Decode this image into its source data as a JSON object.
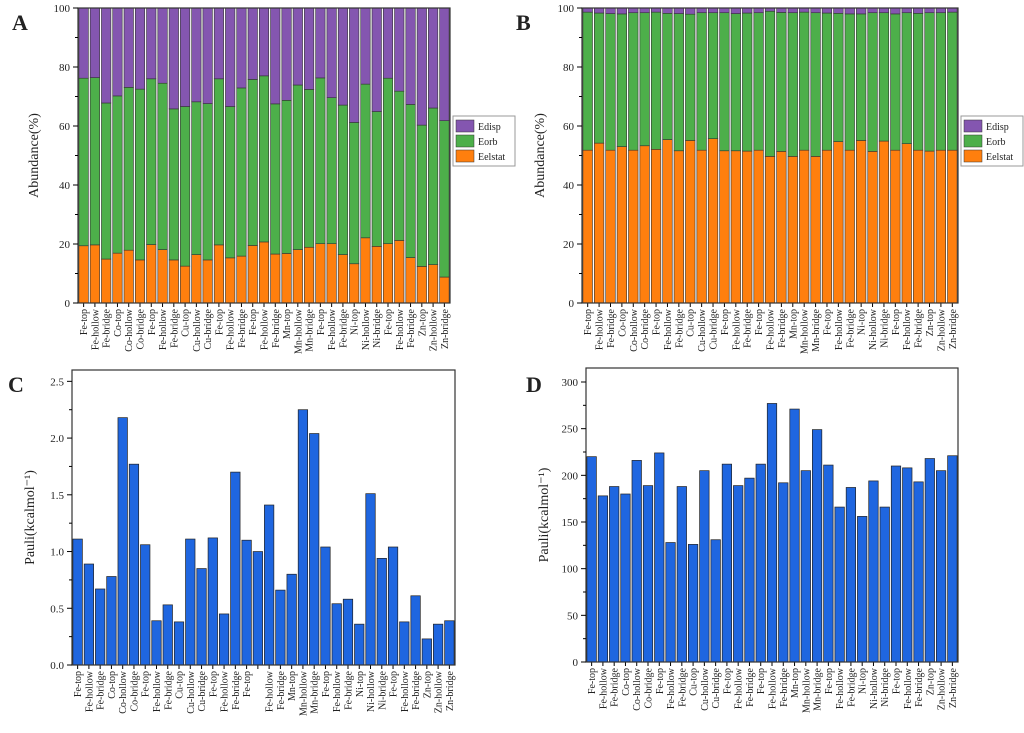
{
  "chart_data": [
    {
      "panel": "A",
      "type": "bar",
      "stacked": true,
      "ylabel": "Abundance(%)",
      "ylim": [
        0,
        100
      ],
      "yticks": [
        0,
        20,
        40,
        60,
        80,
        100
      ],
      "legend_position": "right",
      "categories": [
        "Fe-top",
        "Fe-hollow",
        "Fe-bridge",
        "Co-top",
        "Co-hollow",
        "Co-bridge",
        "Fe-top",
        "Fe-hollow",
        "Fe-bridge",
        "Cu-top",
        "Cu-hollow",
        "Cu-bridge",
        "Fe-top",
        "Fe-hollow",
        "Fe-bridge",
        "Fe-top",
        "Fe-hollow",
        "Fe-bridge",
        "Mn-top",
        "Mn-hollow",
        "Mn-bridge",
        "Fe-top",
        "Fe-hollow",
        "Fe-bridge",
        "Ni-top",
        "Ni-hollow",
        "Ni-bridge",
        "Fe-top",
        "Fe-hollow",
        "Fe-bridge",
        "Zn-top",
        "Zn-hollow",
        "Zn-bridge"
      ],
      "series": [
        {
          "name": "Eelstat",
          "color": "#ff7f0e",
          "values": [
            19.4,
            19.7,
            14.9,
            16.9,
            17.9,
            14.6,
            19.8,
            18.1,
            14.6,
            12.5,
            16.4,
            14.6,
            19.7,
            15.3,
            15.9,
            19.5,
            20.7,
            16.6,
            16.8,
            18.1,
            18.9,
            20.1,
            20.1,
            16.4,
            13.3,
            22.1,
            19.2,
            20.1,
            21.2,
            15.4,
            12.4,
            13.0,
            8.8
          ]
        },
        {
          "name": "Eorb",
          "color": "#4daf4a",
          "values": [
            56.8,
            56.7,
            52.9,
            53.3,
            55.2,
            57.9,
            56.2,
            56.4,
            51.2,
            54.1,
            51.8,
            53.0,
            56.3,
            51.3,
            57.0,
            56.3,
            56.3,
            50.9,
            51.9,
            55.8,
            53.5,
            56.2,
            49.5,
            50.7,
            47.9,
            52.1,
            45.7,
            56.1,
            50.6,
            51.9,
            47.9,
            53.1,
            53.0
          ]
        },
        {
          "name": "Edisp",
          "color": "#8456b0",
          "values": [
            23.8,
            23.6,
            32.2,
            29.8,
            26.9,
            27.5,
            24.0,
            25.5,
            34.2,
            33.4,
            31.8,
            32.4,
            24.0,
            33.4,
            27.1,
            24.2,
            23.0,
            32.5,
            31.3,
            26.1,
            27.6,
            23.7,
            30.4,
            32.9,
            38.8,
            25.8,
            35.1,
            23.8,
            28.2,
            32.7,
            39.7,
            33.9,
            38.2
          ]
        }
      ]
    },
    {
      "panel": "B",
      "type": "bar",
      "stacked": true,
      "ylabel": "Abundance(%)",
      "ylim": [
        0,
        100
      ],
      "yticks": [
        0,
        20,
        40,
        60,
        80,
        100
      ],
      "legend_position": "right",
      "categories": [
        "Fe-top",
        "Fe-hollow",
        "Fe-bridge",
        "Co-top",
        "Co-hollow",
        "Co-bridge",
        "Fe-top",
        "Fe-hollow",
        "Fe-bridge",
        "Cu-top",
        "Cu-hollow",
        "Cu-bridge",
        "Fe-top",
        "Fe-hollow",
        "Fe-bridge",
        "Fe-top",
        "Fe-hollow",
        "Fe-bridge",
        "Mn-top",
        "Mn-hollow",
        "Mn-bridge",
        "Fe-top",
        "Fe-hollow",
        "Fe-bridge",
        "Ni-top",
        "Ni-hollow",
        "Ni-bridge",
        "Fe-top",
        "Fe-hollow",
        "Fe-bridge",
        "Zn-top",
        "Zn-hollow",
        "Zn-bridge"
      ],
      "series": [
        {
          "name": "Eelstat",
          "color": "#ff7f0e",
          "values": [
            51.8,
            54.2,
            51.8,
            53.0,
            51.8,
            53.3,
            52.1,
            55.4,
            51.6,
            55.1,
            51.8,
            55.7,
            51.6,
            51.6,
            51.5,
            51.8,
            49.7,
            51.4,
            49.7,
            51.8,
            49.7,
            51.8,
            54.7,
            51.8,
            55.1,
            51.4,
            54.9,
            51.8,
            54.0,
            51.8,
            51.5,
            51.8,
            51.8
          ]
        },
        {
          "name": "Eorb",
          "color": "#4daf4a",
          "values": [
            46.8,
            44.1,
            46.3,
            45.0,
            46.6,
            45.1,
            46.5,
            42.8,
            46.5,
            42.8,
            46.6,
            42.7,
            46.8,
            46.5,
            46.8,
            46.6,
            49.2,
            47.1,
            48.7,
            46.8,
            48.7,
            46.5,
            43.5,
            46.2,
            42.9,
            47.0,
            43.5,
            46.2,
            44.4,
            46.4,
            46.9,
            46.6,
            46.8
          ]
        },
        {
          "name": "Edisp",
          "color": "#8456b0",
          "values": [
            1.4,
            1.7,
            1.9,
            2.0,
            1.6,
            1.6,
            1.4,
            1.8,
            1.9,
            2.1,
            1.6,
            1.6,
            1.6,
            1.9,
            1.7,
            1.6,
            1.1,
            1.5,
            1.6,
            1.4,
            1.6,
            1.7,
            1.8,
            2.0,
            2.0,
            1.6,
            1.6,
            2.0,
            1.6,
            1.8,
            1.6,
            1.6,
            1.4
          ]
        }
      ]
    },
    {
      "panel": "C",
      "type": "bar",
      "ylabel": "Pauli(kcalmol⁻¹)",
      "ylim": [
        0,
        2.6
      ],
      "yticks": [
        "0.0",
        "0.5",
        "1.0",
        "1.5",
        "2.0",
        "2.5"
      ],
      "color": "#1f66e0",
      "categories": [
        "Fe-top",
        "Fe-hollow",
        "Fe-bridge",
        "Co-top",
        "Co-hollow",
        "Co-bridge",
        "Fe-top",
        "Fe-hollow",
        "Fe-bridge",
        "Cu-top",
        "Cu-hollow",
        "Cu-bridge",
        "Fe-top",
        "Fe-hollow",
        "Fe-bridge",
        "Fe-top",
        "",
        "Fe-hollow",
        "Fe-bridge",
        "Mn-top",
        "Mn-hollow",
        "Mn-bridge",
        "Fe-top",
        "Fe-hollow",
        "Fe-bridge",
        "Ni-top",
        "Ni-hollow",
        "Ni-bridge",
        "Fe-top",
        "Fe-hollow",
        "Fe-bridge",
        "Zn-top",
        "Zn-hollow",
        "Zn-bridge"
      ],
      "values": [
        1.11,
        0.89,
        0.67,
        0.78,
        2.18,
        1.77,
        1.06,
        0.39,
        0.53,
        0.38,
        1.11,
        0.85,
        1.12,
        0.45,
        1.7,
        1.1,
        1.0,
        1.41,
        0.66,
        0.8,
        2.25,
        2.04,
        1.04,
        0.54,
        0.58,
        0.36,
        1.51,
        0.94,
        1.04,
        0.38,
        0.61,
        0.23,
        0.36,
        0.39
      ]
    },
    {
      "panel": "D",
      "type": "bar",
      "ylabel": "Pauli(kcalmol⁻¹)",
      "ylim": [
        0,
        315
      ],
      "yticks": [
        "0",
        "50",
        "100",
        "150",
        "200",
        "250",
        "300"
      ],
      "color": "#1f66e0",
      "categories": [
        "Fe-top",
        "Fe-hollow",
        "Fe-bridge",
        "Co-top",
        "Co-hollow",
        "Co-bridge",
        "Fe-top",
        "Fe-hollow",
        "Fe-bridge",
        "Cu-top",
        "Cu-hollow",
        "Cu-bridge",
        "Fe-top",
        "Fe-hollow",
        "Fe-bridge",
        "Fe-top",
        "Fe-hollow",
        "Fe-bridge",
        "Mn-top",
        "Mn-hollow",
        "Mn-bridge",
        "Fe-top",
        "Fe-hollow",
        "Fe-bridge",
        "Ni-top",
        "Ni-hollow",
        "Ni-bridge",
        "Fe-top",
        "Fe-hollow",
        "Fe-bridge",
        "Zn-top",
        "Zn-hollow",
        "Zn-bridge"
      ],
      "values": [
        220,
        178,
        188,
        180,
        216,
        189,
        224,
        128,
        188,
        126,
        205,
        131,
        212,
        189,
        197,
        212,
        277,
        192,
        271,
        205,
        249,
        211,
        166,
        187,
        156,
        194,
        166,
        210,
        208,
        193,
        218,
        205,
        221
      ]
    }
  ]
}
